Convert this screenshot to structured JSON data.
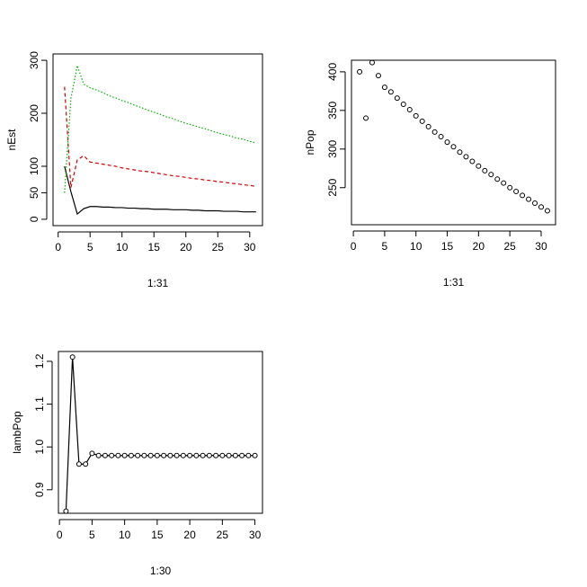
{
  "chart_data": [
    {
      "type": "line",
      "x_label": "1:31",
      "y_label": "nEst",
      "x": [
        1,
        2,
        3,
        4,
        5,
        6,
        7,
        8,
        9,
        10,
        11,
        12,
        13,
        14,
        15,
        16,
        17,
        18,
        19,
        20,
        21,
        22,
        23,
        24,
        25,
        26,
        27,
        28,
        29,
        30,
        31
      ],
      "series": [
        {
          "color": "#000000",
          "line_style": "solid",
          "values": [
            100,
            52,
            10,
            20,
            24,
            24,
            23,
            23,
            22,
            22,
            21,
            21,
            20,
            20,
            19,
            19,
            19,
            18,
            18,
            18,
            17,
            17,
            16,
            16,
            16,
            15,
            15,
            15,
            14,
            14,
            14
          ]
        },
        {
          "color": "#d00000",
          "line_style": "dashed",
          "values": [
            250,
            60,
            112,
            120,
            108,
            106,
            104,
            102,
            100,
            97,
            95,
            93,
            91,
            90,
            88,
            86,
            84,
            82,
            81,
            79,
            77,
            76,
            74,
            73,
            71,
            70,
            68,
            67,
            65,
            64,
            62
          ]
        },
        {
          "color": "#00b000",
          "line_style": "dotted",
          "values": [
            50,
            228,
            290,
            255,
            248,
            244,
            239,
            233,
            229,
            224,
            220,
            215,
            211,
            206,
            202,
            198,
            193,
            190,
            185,
            181,
            178,
            174,
            171,
            167,
            163,
            160,
            157,
            153,
            151,
            147,
            144
          ]
        }
      ],
      "xlim": [
        -0.8,
        32
      ],
      "xticks": [
        0,
        5,
        10,
        15,
        20,
        25,
        30
      ],
      "ylim": [
        -12,
        312
      ],
      "yticks": [
        0,
        50,
        100,
        200,
        300
      ]
    },
    {
      "type": "scatter",
      "x_label": "1:31",
      "y_label": "nPop",
      "x": [
        1,
        2,
        3,
        4,
        5,
        6,
        7,
        8,
        9,
        10,
        11,
        12,
        13,
        14,
        15,
        16,
        17,
        18,
        19,
        20,
        21,
        22,
        23,
        24,
        25,
        26,
        27,
        28,
        29,
        30,
        31
      ],
      "values": [
        400,
        340,
        412,
        395,
        380,
        374,
        366,
        358,
        351,
        343,
        336,
        329,
        322,
        316,
        309,
        303,
        296,
        290,
        284,
        278,
        272,
        267,
        261,
        256,
        250,
        245,
        240,
        235,
        230,
        225,
        220
      ],
      "color": "#000000",
      "xlim": [
        -0.3,
        32.3
      ],
      "xticks": [
        0,
        5,
        10,
        15,
        20,
        25,
        30
      ],
      "ylim": [
        202,
        415
      ],
      "yticks": [
        250,
        300,
        350,
        400
      ]
    },
    {
      "type": "line",
      "markers": true,
      "x_label": "1:30",
      "y_label": "lambPop",
      "x": [
        1,
        2,
        3,
        4,
        5,
        6,
        7,
        8,
        9,
        10,
        11,
        12,
        13,
        14,
        15,
        16,
        17,
        18,
        19,
        20,
        21,
        22,
        23,
        24,
        25,
        26,
        27,
        28,
        29,
        30
      ],
      "values": [
        0.85,
        1.21,
        0.96,
        0.96,
        0.985,
        0.98,
        0.98,
        0.98,
        0.98,
        0.98,
        0.98,
        0.98,
        0.98,
        0.98,
        0.98,
        0.98,
        0.98,
        0.98,
        0.98,
        0.98,
        0.98,
        0.98,
        0.98,
        0.98,
        0.98,
        0.98,
        0.98,
        0.98,
        0.98,
        0.98
      ],
      "color": "#000000",
      "xlim": [
        -0.16,
        31.16
      ],
      "xticks": [
        0,
        5,
        10,
        15,
        20,
        25,
        30
      ],
      "ylim": [
        0.845,
        1.223
      ],
      "yticks": [
        0.9,
        {
          "value": 1,
          "label": "1.0"
        },
        1.1,
        1.2
      ]
    }
  ]
}
